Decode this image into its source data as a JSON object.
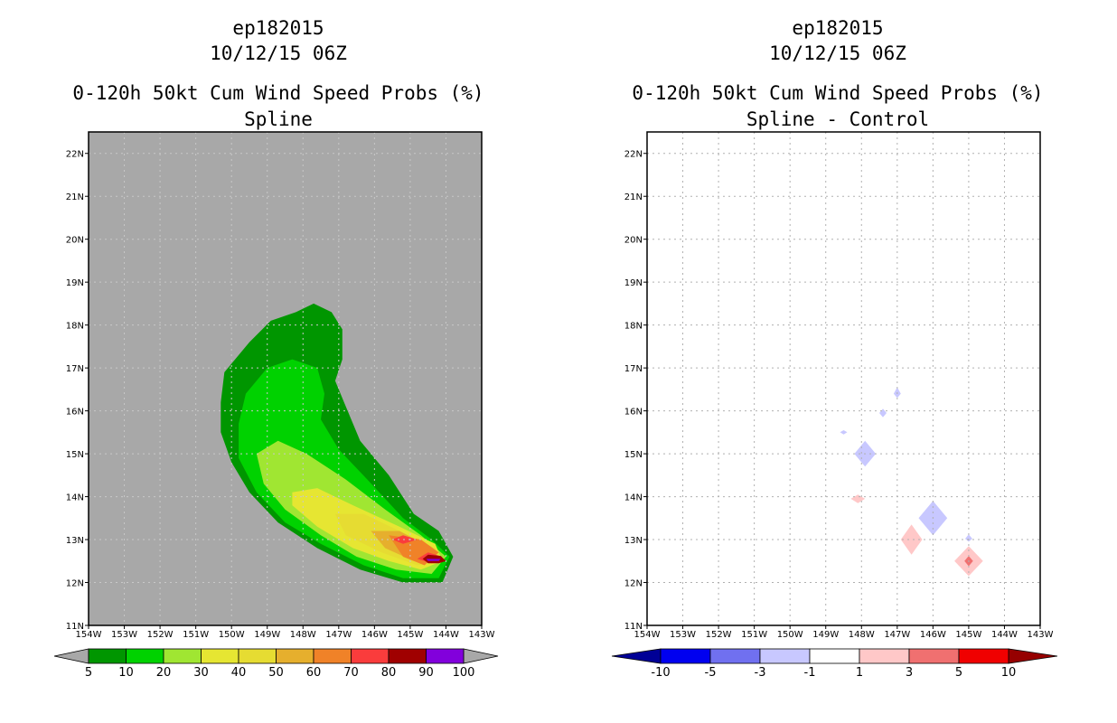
{
  "left": {
    "title_storm": "ep182015",
    "title_time": "10/12/15 06Z",
    "title_product": "0-120h 50kt Cum Wind Speed Probs (%)",
    "subtitle": "Spline"
  },
  "right": {
    "title_storm": "ep182015",
    "title_time": "10/12/15 06Z",
    "title_product": "0-120h 50kt Cum Wind Speed Probs (%)",
    "subtitle": "Spline - Control"
  },
  "colors": {
    "land_bg": "#a8a8a8",
    "grid": "#b0b0b0"
  },
  "chart_data": [
    {
      "type": "heatmap",
      "title": "0-120h 50kt Cum Wind Speed Probs (%)",
      "subtitle": "Spline",
      "xlim": [
        -154,
        -143
      ],
      "ylim": [
        11,
        22.5
      ],
      "x_tick_labels": [
        "154W",
        "153W",
        "152W",
        "151W",
        "150W",
        "149W",
        "148W",
        "147W",
        "146W",
        "145W",
        "144W",
        "143W"
      ],
      "y_tick_labels": [
        "11N",
        "12N",
        "13N",
        "14N",
        "15N",
        "16N",
        "17N",
        "18N",
        "19N",
        "20N",
        "21N",
        "22N"
      ],
      "colorbar": {
        "labels": [
          "5",
          "10",
          "20",
          "30",
          "40",
          "50",
          "60",
          "70",
          "80",
          "90",
          "100"
        ],
        "colors": [
          "#009600",
          "#00d200",
          "#a0e632",
          "#e6e632",
          "#e6dc32",
          "#e6af2d",
          "#f08228",
          "#fa3c3c",
          "#a00000",
          "#8200dc"
        ],
        "extend_low": "#a8a8a8",
        "extend_high": "#a8a8a8"
      },
      "contours": [
        {
          "level": 5,
          "color": "#009600",
          "points": [
            [
              -150.3,
              16.2
            ],
            [
              -150.2,
              16.9
            ],
            [
              -149.5,
              17.6
            ],
            [
              -148.9,
              18.1
            ],
            [
              -148.2,
              18.3
            ],
            [
              -147.7,
              18.5
            ],
            [
              -147.2,
              18.3
            ],
            [
              -146.9,
              17.9
            ],
            [
              -146.9,
              17.2
            ],
            [
              -147.1,
              16.7
            ],
            [
              -146.8,
              16.1
            ],
            [
              -146.4,
              15.3
            ],
            [
              -145.6,
              14.5
            ],
            [
              -144.9,
              13.6
            ],
            [
              -144.2,
              13.2
            ],
            [
              -143.8,
              12.6
            ],
            [
              -144.1,
              12.0
            ],
            [
              -145.2,
              12.0
            ],
            [
              -146.4,
              12.3
            ],
            [
              -147.6,
              12.8
            ],
            [
              -148.7,
              13.4
            ],
            [
              -149.5,
              14.1
            ],
            [
              -150.0,
              14.8
            ],
            [
              -150.3,
              15.5
            ]
          ]
        },
        {
          "level": 10,
          "color": "#00d200",
          "points": [
            [
              -149.8,
              15.7
            ],
            [
              -149.6,
              16.4
            ],
            [
              -149.0,
              17.0
            ],
            [
              -148.3,
              17.2
            ],
            [
              -147.6,
              17.0
            ],
            [
              -147.4,
              16.4
            ],
            [
              -147.5,
              15.8
            ],
            [
              -147.0,
              15.1
            ],
            [
              -146.2,
              14.4
            ],
            [
              -145.2,
              13.5
            ],
            [
              -144.4,
              13.0
            ],
            [
              -143.9,
              12.6
            ],
            [
              -144.2,
              12.1
            ],
            [
              -145.2,
              12.1
            ],
            [
              -146.3,
              12.4
            ],
            [
              -147.5,
              12.9
            ],
            [
              -148.5,
              13.4
            ],
            [
              -149.3,
              14.1
            ],
            [
              -149.8,
              14.9
            ]
          ]
        },
        {
          "level": 20,
          "color": "#a0e632",
          "points": [
            [
              -149.3,
              15.0
            ],
            [
              -148.7,
              15.3
            ],
            [
              -147.9,
              15.0
            ],
            [
              -146.8,
              14.4
            ],
            [
              -145.7,
              13.7
            ],
            [
              -144.7,
              13.1
            ],
            [
              -144.0,
              12.6
            ],
            [
              -144.4,
              12.2
            ],
            [
              -145.4,
              12.3
            ],
            [
              -146.5,
              12.6
            ],
            [
              -147.5,
              13.1
            ],
            [
              -148.5,
              13.7
            ],
            [
              -149.1,
              14.3
            ]
          ]
        },
        {
          "level": 30,
          "color": "#e6e632",
          "points": [
            [
              -148.3,
              14.1
            ],
            [
              -147.6,
              14.2
            ],
            [
              -146.6,
              13.8
            ],
            [
              -145.3,
              13.3
            ],
            [
              -144.3,
              12.9
            ],
            [
              -144.1,
              12.5
            ],
            [
              -144.7,
              12.3
            ],
            [
              -145.6,
              12.5
            ],
            [
              -146.6,
              12.8
            ],
            [
              -147.6,
              13.3
            ],
            [
              -148.3,
              13.8
            ]
          ]
        },
        {
          "level": 40,
          "color": "#e6dc32",
          "points": [
            [
              -147.1,
              13.6
            ],
            [
              -146.3,
              13.6
            ],
            [
              -145.3,
              13.2
            ],
            [
              -144.3,
              12.8
            ],
            [
              -144.2,
              12.5
            ],
            [
              -144.8,
              12.4
            ],
            [
              -145.8,
              12.7
            ],
            [
              -146.8,
              13.1
            ]
          ]
        },
        {
          "level": 50,
          "color": "#e6af2d",
          "points": [
            [
              -146.1,
              13.2
            ],
            [
              -145.3,
              13.2
            ],
            [
              -144.4,
              12.8
            ],
            [
              -144.3,
              12.5
            ],
            [
              -144.9,
              12.5
            ],
            [
              -145.7,
              12.8
            ]
          ]
        },
        {
          "level": 60,
          "color": "#f08228",
          "points": [
            [
              -145.6,
              13.1
            ],
            [
              -144.7,
              13.0
            ],
            [
              -144.2,
              12.7
            ],
            [
              -144.6,
              12.4
            ],
            [
              -145.2,
              12.6
            ]
          ]
        },
        {
          "level": 70,
          "color": "#fa3c3c",
          "points": [
            [
              -145.5,
              13.0
            ],
            [
              -145.2,
              13.1
            ],
            [
              -144.8,
              13.0
            ],
            [
              -145.2,
              12.9
            ]
          ]
        },
        {
          "level": 70,
          "color": "#fa3c3c",
          "points": [
            [
              -144.8,
              12.55
            ],
            [
              -144.5,
              12.7
            ],
            [
              -144.1,
              12.6
            ],
            [
              -144.4,
              12.45
            ]
          ]
        },
        {
          "level": 80,
          "color": "#a00000",
          "points": [
            [
              -144.65,
              12.55
            ],
            [
              -144.5,
              12.65
            ],
            [
              -144.15,
              12.62
            ],
            [
              -144.0,
              12.5
            ],
            [
              -144.2,
              12.45
            ],
            [
              -144.5,
              12.45
            ]
          ]
        },
        {
          "level": 90,
          "color": "#8200dc",
          "points": [
            [
              -144.55,
              12.55
            ],
            [
              -144.15,
              12.55
            ],
            [
              -144.2,
              12.5
            ],
            [
              -144.5,
              12.5
            ]
          ]
        }
      ]
    },
    {
      "type": "heatmap",
      "title": "0-120h 50kt Cum Wind Speed Probs (%)",
      "subtitle": "Spline - Control",
      "xlim": [
        -154,
        -143
      ],
      "ylim": [
        11,
        22.5
      ],
      "grid": true,
      "x_tick_labels": [
        "154W",
        "153W",
        "152W",
        "151W",
        "150W",
        "149W",
        "148W",
        "147W",
        "146W",
        "145W",
        "144W",
        "143W"
      ],
      "y_tick_labels": [
        "11N",
        "12N",
        "13N",
        "14N",
        "15N",
        "16N",
        "17N",
        "18N",
        "19N",
        "20N",
        "21N",
        "22N"
      ],
      "colorbar": {
        "labels": [
          "-10",
          "-5",
          "-3",
          "-1",
          "1",
          "3",
          "5",
          "10"
        ],
        "colors": [
          "#0000f0",
          "#7070f0",
          "#c8c8ff",
          "#ffffff",
          "#ffc8c8",
          "#f07070",
          "#f00000"
        ],
        "extend_low": "#000096",
        "extend_high": "#960000"
      },
      "contours": [
        {
          "level": -1,
          "color": "#c8c8ff",
          "points": [
            [
              -147.1,
              16.4
            ],
            [
              -147.0,
              16.55
            ],
            [
              -146.9,
              16.4
            ],
            [
              -147.0,
              16.3
            ]
          ]
        },
        {
          "level": -1,
          "color": "#c8c8ff",
          "points": [
            [
              -147.5,
              15.95
            ],
            [
              -147.4,
              16.05
            ],
            [
              -147.3,
              15.95
            ],
            [
              -147.4,
              15.85
            ]
          ]
        },
        {
          "level": -1,
          "color": "#c8c8ff",
          "points": [
            [
              -148.6,
              15.5
            ],
            [
              -148.5,
              15.55
            ],
            [
              -148.4,
              15.5
            ],
            [
              -148.5,
              15.45
            ]
          ]
        },
        {
          "level": -1,
          "color": "#c8c8ff",
          "points": [
            [
              -148.2,
              15.0
            ],
            [
              -147.9,
              15.3
            ],
            [
              -147.6,
              15.0
            ],
            [
              -147.9,
              14.7
            ]
          ]
        },
        {
          "level": -1,
          "color": "#c8c8ff",
          "points": [
            [
              -146.4,
              13.5
            ],
            [
              -146.0,
              13.9
            ],
            [
              -145.6,
              13.5
            ],
            [
              -146.0,
              13.1
            ]
          ]
        },
        {
          "level": -1,
          "color": "#c8c8ff",
          "points": [
            [
              -145.1,
              13.02
            ],
            [
              -145.0,
              13.12
            ],
            [
              -144.9,
              13.02
            ],
            [
              -145.0,
              12.95
            ]
          ]
        },
        {
          "level": 1,
          "color": "#ffc8c8",
          "points": [
            [
              -148.3,
              13.95
            ],
            [
              -148.1,
              14.05
            ],
            [
              -147.9,
              13.95
            ],
            [
              -148.1,
              13.85
            ]
          ]
        },
        {
          "level": 1,
          "color": "#ffc8c8",
          "points": [
            [
              -146.9,
              13.0
            ],
            [
              -146.6,
              13.35
            ],
            [
              -146.3,
              13.0
            ],
            [
              -146.6,
              12.65
            ]
          ]
        },
        {
          "level": 1,
          "color": "#ffc8c8",
          "points": [
            [
              -145.4,
              12.5
            ],
            [
              -145.0,
              12.85
            ],
            [
              -144.6,
              12.5
            ],
            [
              -145.0,
              12.15
            ]
          ]
        },
        {
          "level": 3,
          "color": "#f07070",
          "points": [
            [
              -145.12,
              12.5
            ],
            [
              -145.0,
              12.62
            ],
            [
              -144.88,
              12.5
            ],
            [
              -145.0,
              12.38
            ]
          ]
        }
      ]
    }
  ]
}
